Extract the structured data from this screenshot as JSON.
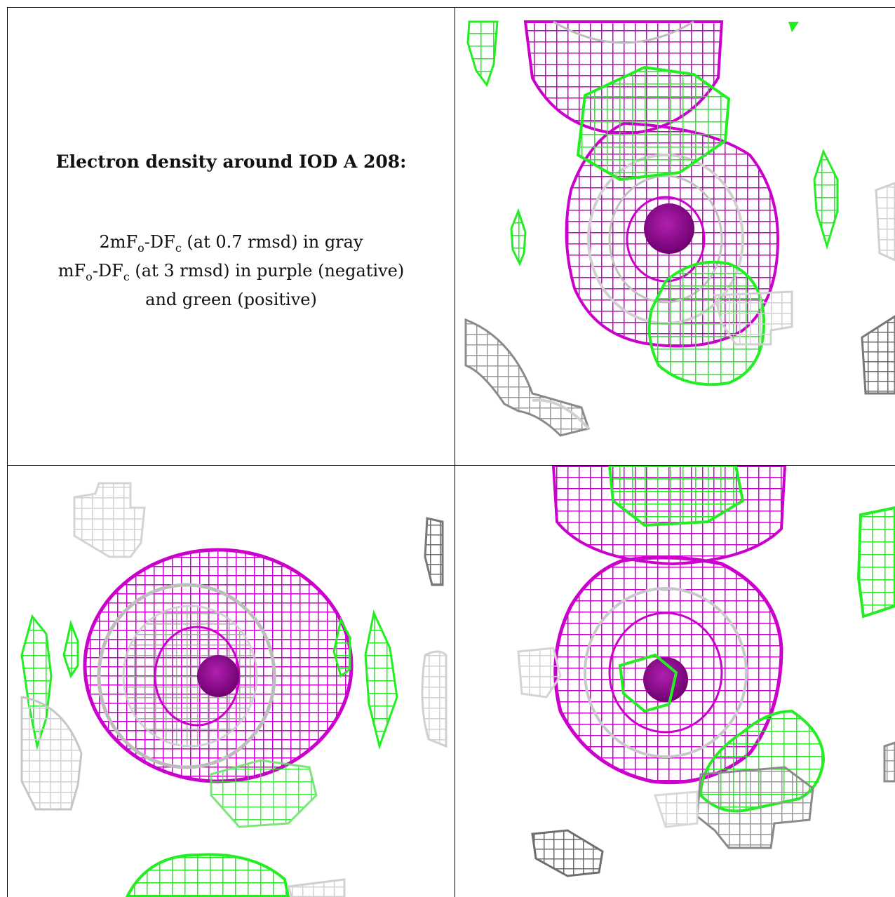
{
  "caption": {
    "title": "Electron density around IOD A 208:",
    "line1_prefix": "2mF",
    "line1_sub1": "o",
    "line1_mid": "-DF",
    "line1_sub2": "c",
    "line1_suffix": " (at 0.7 rmsd) in gray",
    "line2_prefix": "mF",
    "line2_sub1": "o",
    "line2_mid": "-DF",
    "line2_sub2": "c",
    "line2_suffix": " (at 3 rmsd) in purple (negative)",
    "line3": "and green (positive)"
  },
  "colors": {
    "gray_map": "#9e9e9e",
    "light_gray_map": "#d4d4d4",
    "negative_map": "#cc00cc",
    "positive_map": "#33ee33",
    "atom": "#8a008a"
  },
  "panels": [
    "top-right-view",
    "bottom-left-view",
    "bottom-right-view"
  ]
}
